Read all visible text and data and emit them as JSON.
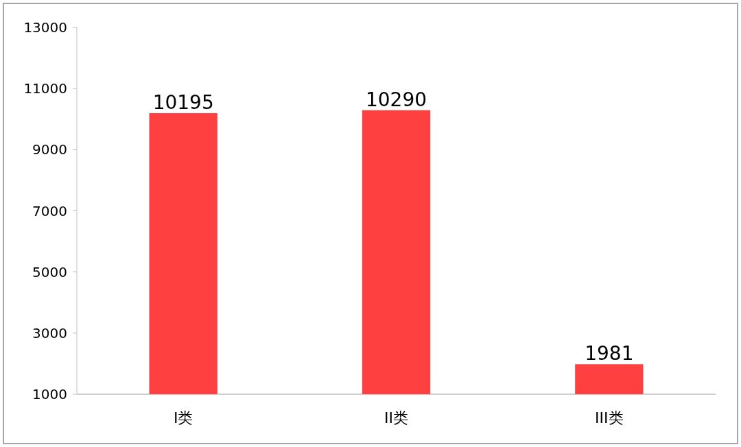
{
  "chart_data": {
    "type": "bar",
    "categories": [
      "I类",
      "II类",
      "III类"
    ],
    "values": [
      10195,
      10290,
      1981
    ],
    "color": "#ff4040",
    "ylim": [
      1000,
      13000
    ],
    "yticks": [
      1000,
      3000,
      5000,
      7000,
      9000,
      11000,
      13000
    ],
    "data_labels": true
  }
}
